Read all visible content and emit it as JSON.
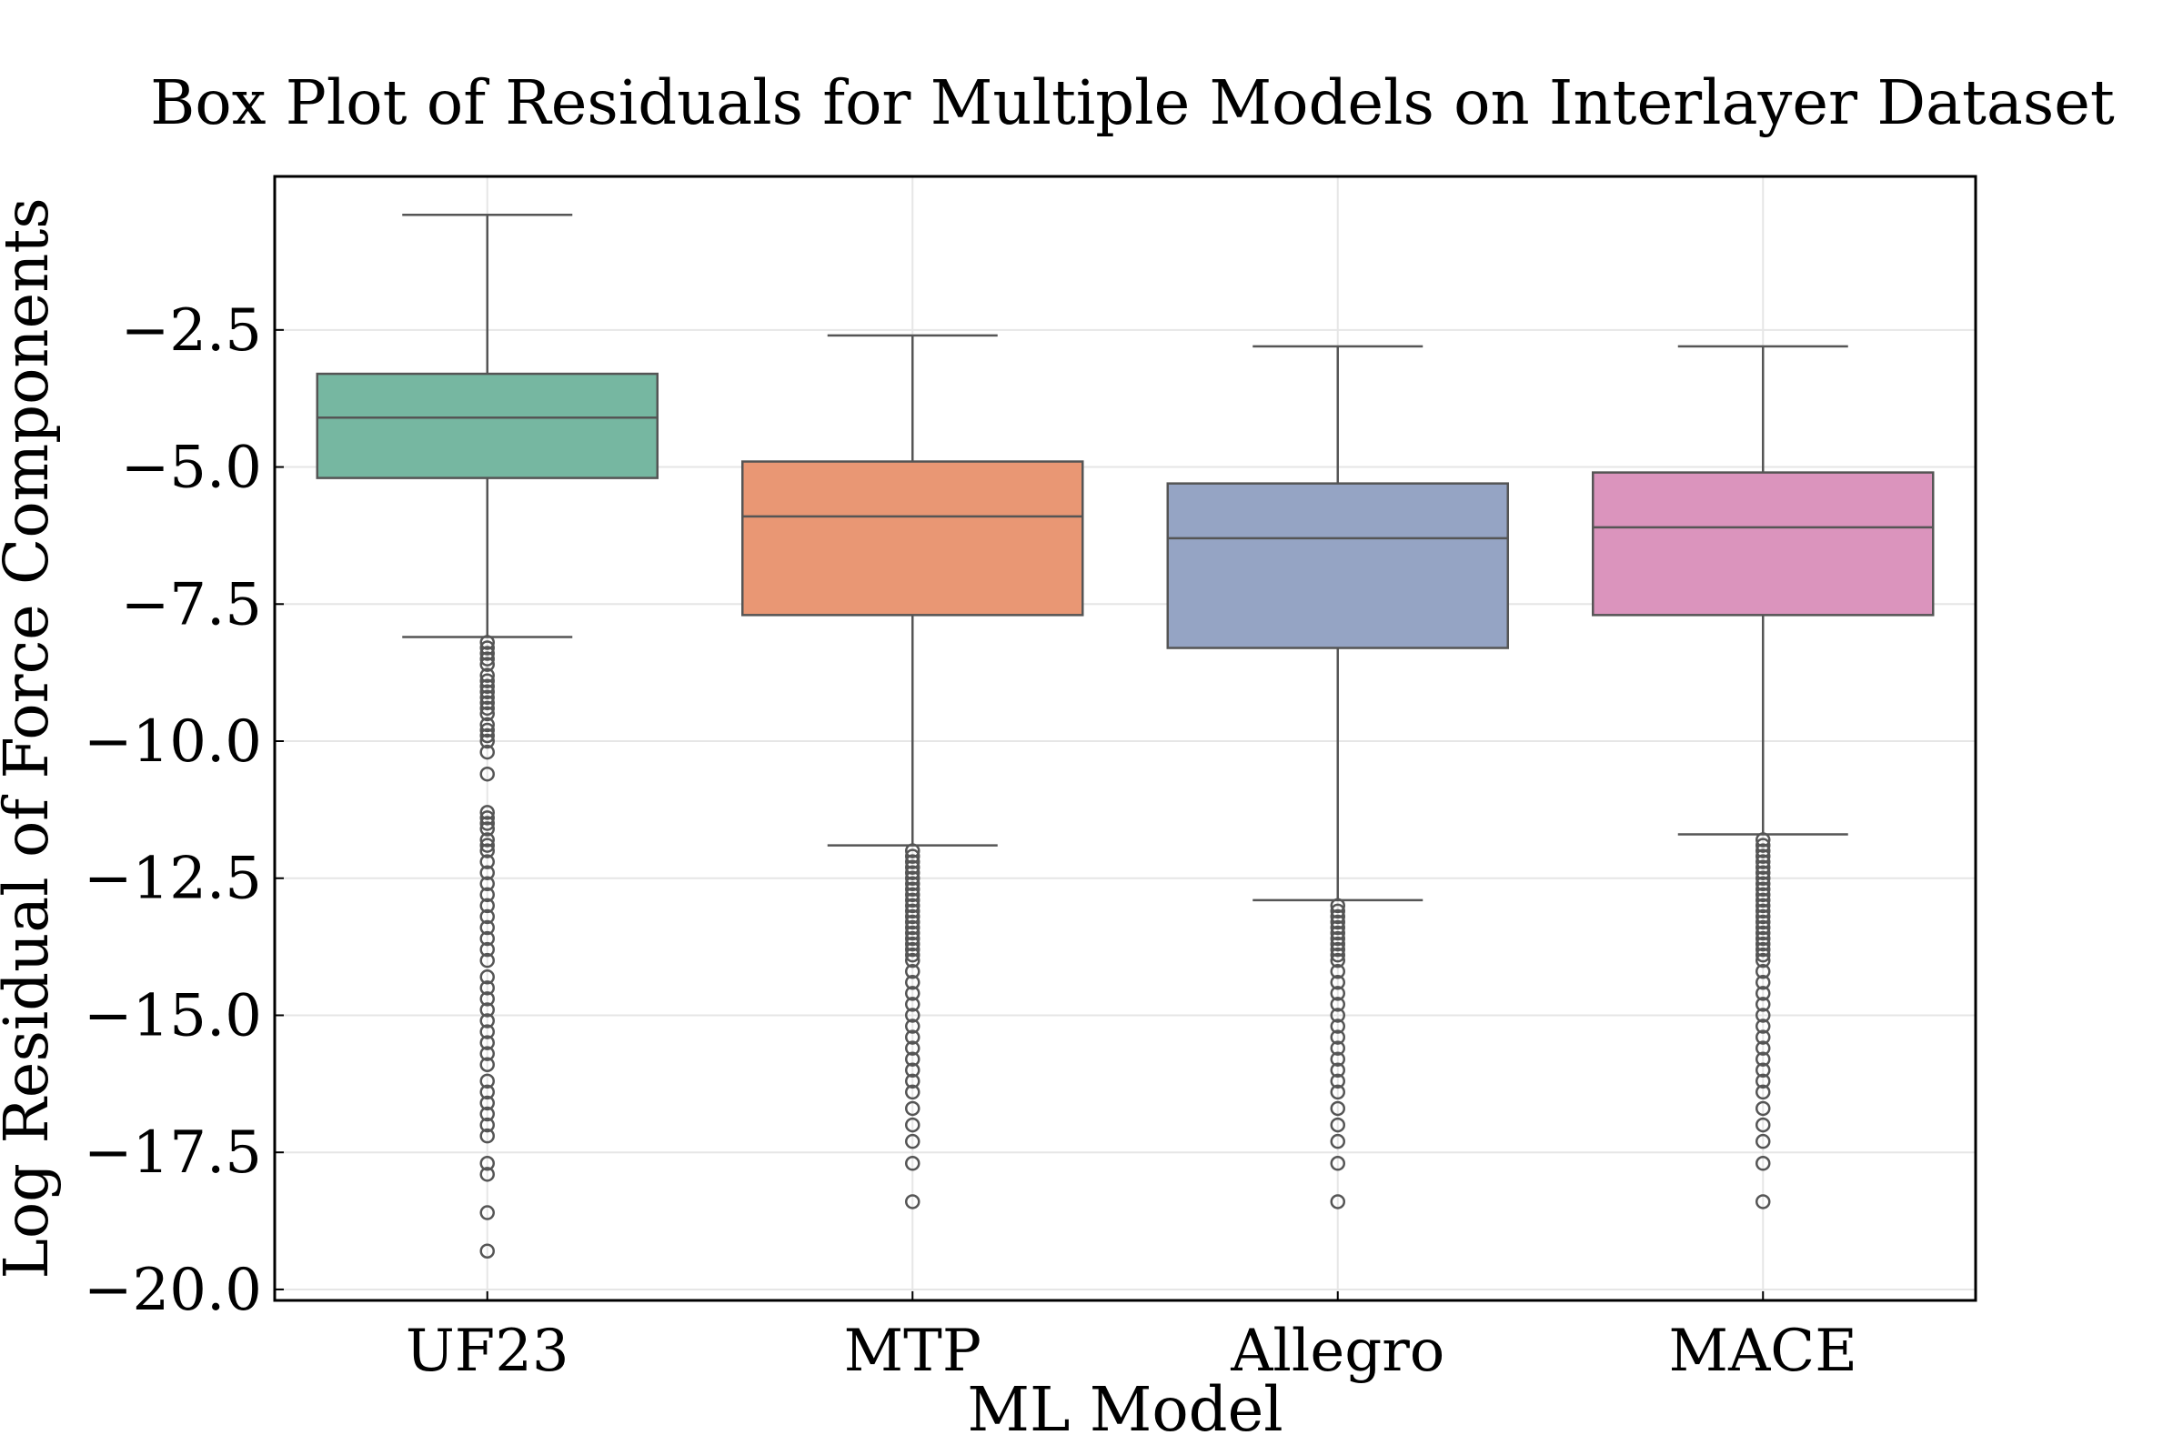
{
  "chart_data": {
    "type": "box",
    "title": "Box Plot of Residuals for Multiple Models on Interlayer Dataset",
    "xlabel": "ML Model",
    "ylabel": "Log Residual of Force Components",
    "ylim": [
      -20.2,
      0.3
    ],
    "yticks": [
      -2.5,
      -5.0,
      -7.5,
      -10.0,
      -12.5,
      -15.0,
      -17.5,
      -20.0
    ],
    "ytick_labels": [
      "−2.5",
      "−5.0",
      "−7.5",
      "−10.0",
      "−12.5",
      "−15.0",
      "−17.5",
      "−20.0"
    ],
    "grid": true,
    "categories": [
      "UF23",
      "MTP",
      "Allegro",
      "MACE"
    ],
    "series": [
      {
        "category": "UF23",
        "color": "#76b7a1",
        "whisker_high": -0.4,
        "q3": -3.3,
        "median": -4.1,
        "q1": -5.2,
        "whisker_low": -8.1,
        "outliers": [
          -8.2,
          -8.3,
          -8.4,
          -8.5,
          -8.6,
          -8.8,
          -8.9,
          -9.0,
          -9.1,
          -9.2,
          -9.3,
          -9.4,
          -9.5,
          -9.7,
          -9.8,
          -9.9,
          -10.0,
          -10.2,
          -10.6,
          -11.3,
          -11.4,
          -11.5,
          -11.6,
          -11.8,
          -11.9,
          -12.0,
          -12.2,
          -12.4,
          -12.6,
          -12.8,
          -13.0,
          -13.2,
          -13.4,
          -13.6,
          -13.8,
          -14.0,
          -14.3,
          -14.5,
          -14.7,
          -14.9,
          -15.1,
          -15.3,
          -15.5,
          -15.7,
          -15.9,
          -16.2,
          -16.4,
          -16.6,
          -16.8,
          -17.0,
          -17.2,
          -17.7,
          -17.9,
          -18.6,
          -19.3
        ],
        "whisker_cap": true
      },
      {
        "category": "MTP",
        "color": "#e99774",
        "whisker_high": -2.6,
        "q3": -4.9,
        "median": -5.9,
        "q1": -7.7,
        "whisker_low": -11.9,
        "outliers": [
          -12.0,
          -12.1,
          -12.2,
          -12.3,
          -12.4,
          -12.5,
          -12.6,
          -12.7,
          -12.8,
          -12.9,
          -13.0,
          -13.1,
          -13.2,
          -13.3,
          -13.4,
          -13.5,
          -13.6,
          -13.7,
          -13.8,
          -13.9,
          -14.0,
          -14.2,
          -14.4,
          -14.6,
          -14.8,
          -15.0,
          -15.2,
          -15.4,
          -15.6,
          -15.8,
          -16.0,
          -16.2,
          -16.4,
          -16.7,
          -17.0,
          -17.3,
          -17.7,
          -18.4
        ],
        "whisker_cap": true
      },
      {
        "category": "Allegro",
        "color": "#95a4c4",
        "whisker_high": -2.8,
        "q3": -5.3,
        "median": -6.3,
        "q1": -8.3,
        "whisker_low": -12.9,
        "outliers": [
          -13.0,
          -13.1,
          -13.2,
          -13.3,
          -13.4,
          -13.5,
          -13.6,
          -13.7,
          -13.8,
          -13.9,
          -14.0,
          -14.2,
          -14.4,
          -14.6,
          -14.8,
          -15.0,
          -15.2,
          -15.4,
          -15.6,
          -15.8,
          -16.0,
          -16.2,
          -16.4,
          -16.7,
          -17.0,
          -17.3,
          -17.7,
          -18.4
        ],
        "whisker_cap": true
      },
      {
        "category": "MACE",
        "color": "#db94bd",
        "whisker_high": -2.8,
        "q3": -5.1,
        "median": -6.1,
        "q1": -7.7,
        "whisker_low": -11.7,
        "outliers": [
          -11.8,
          -11.9,
          -12.0,
          -12.1,
          -12.2,
          -12.3,
          -12.4,
          -12.5,
          -12.6,
          -12.7,
          -12.8,
          -12.9,
          -13.0,
          -13.1,
          -13.2,
          -13.3,
          -13.4,
          -13.5,
          -13.6,
          -13.7,
          -13.8,
          -13.9,
          -14.0,
          -14.2,
          -14.4,
          -14.6,
          -14.8,
          -15.0,
          -15.2,
          -15.4,
          -15.6,
          -15.8,
          -16.0,
          -16.2,
          -16.4,
          -16.7,
          -17.0,
          -17.3,
          -17.7,
          -18.4
        ],
        "whisker_cap": true
      }
    ]
  }
}
